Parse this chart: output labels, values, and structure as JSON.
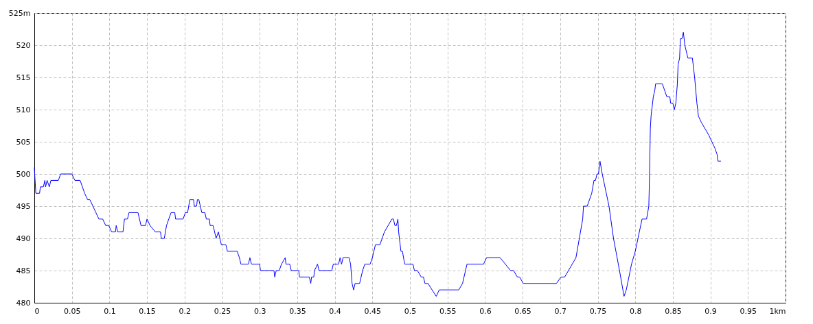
{
  "chart_data": {
    "type": "line",
    "x": [
      0,
      0.002,
      0.007,
      0.008,
      0.012,
      0.014,
      0.015,
      0.017,
      0.02,
      0.022,
      0.032,
      0.035,
      0.05,
      0.054,
      0.061,
      0.067,
      0.071,
      0.074,
      0.078,
      0.082,
      0.086,
      0.091,
      0.095,
      0.099,
      0.103,
      0.108,
      0.109,
      0.111,
      0.118,
      0.12,
      0.124,
      0.126,
      0.138,
      0.142,
      0.148,
      0.15,
      0.154,
      0.161,
      0.168,
      0.169,
      0.173,
      0.176,
      0.182,
      0.187,
      0.188,
      0.198,
      0.201,
      0.204,
      0.207,
      0.212,
      0.213,
      0.216,
      0.217,
      0.219,
      0.223,
      0.227,
      0.229,
      0.233,
      0.234,
      0.238,
      0.242,
      0.245,
      0.249,
      0.255,
      0.257,
      0.27,
      0.273,
      0.275,
      0.285,
      0.287,
      0.289,
      0.3,
      0.301,
      0.319,
      0.32,
      0.322,
      0.326,
      0.329,
      0.334,
      0.335,
      0.34,
      0.342,
      0.352,
      0.353,
      0.366,
      0.368,
      0.369,
      0.372,
      0.373,
      0.377,
      0.379,
      0.396,
      0.398,
      0.405,
      0.407,
      0.409,
      0.411,
      0.413,
      0.419,
      0.421,
      0.423,
      0.425,
      0.427,
      0.433,
      0.437,
      0.44,
      0.447,
      0.45,
      0.454,
      0.46,
      0.463,
      0.466,
      0.471,
      0.476,
      0.478,
      0.48,
      0.482,
      0.484,
      0.485,
      0.488,
      0.49,
      0.493,
      0.504,
      0.506,
      0.51,
      0.515,
      0.518,
      0.52,
      0.524,
      0.535,
      0.539,
      0.565,
      0.57,
      0.576,
      0.598,
      0.602,
      0.62,
      0.634,
      0.638,
      0.643,
      0.646,
      0.651,
      0.695,
      0.701,
      0.706,
      0.721,
      0.724,
      0.73,
      0.731,
      0.736,
      0.739,
      0.742,
      0.745,
      0.747,
      0.749,
      0.751,
      0.753,
      0.756,
      0.765,
      0.771,
      0.779,
      0.785,
      0.788,
      0.795,
      0.8,
      0.809,
      0.815,
      0.818,
      0.819,
      0.82,
      0.821,
      0.822,
      0.824,
      0.826,
      0.827,
      0.836,
      0.839,
      0.842,
      0.846,
      0.847,
      0.85,
      0.852,
      0.854,
      0.856,
      0.857,
      0.859,
      0.86,
      0.862,
      0.864,
      0.866,
      0.87,
      0.872,
      0.876,
      0.879,
      0.882,
      0.884,
      0.888,
      0.893,
      0.898,
      0.902,
      0.906,
      0.909,
      0.91,
      0.914
    ],
    "series": [
      {
        "color": "#0000ff",
        "values": [
          501,
          497,
          497,
          498,
          498,
          499,
          498,
          499,
          498,
          499,
          499,
          500,
          500,
          499,
          499,
          497,
          496,
          496,
          495,
          494,
          493,
          493,
          492,
          492,
          491,
          491,
          492,
          491,
          491,
          493,
          493,
          494,
          494,
          492,
          492,
          493,
          492,
          491,
          491,
          490,
          490,
          492,
          494,
          494,
          493,
          493,
          494,
          494,
          496,
          496,
          495,
          495,
          496,
          496,
          494,
          494,
          493,
          493,
          492,
          492,
          490,
          491,
          489,
          489,
          488,
          488,
          487,
          486,
          486,
          487,
          486,
          486,
          485,
          485,
          484,
          485,
          485,
          486,
          487,
          486,
          486,
          485,
          485,
          484,
          484,
          483,
          484,
          484,
          485,
          486,
          485,
          485,
          486,
          486,
          487,
          486,
          487,
          487,
          487,
          486,
          483,
          482,
          483,
          483,
          485,
          486,
          486,
          487,
          489,
          489,
          490,
          491,
          492,
          493,
          493,
          492,
          492,
          493,
          491,
          488,
          488,
          486,
          486,
          485,
          485,
          484,
          484,
          483,
          483,
          481,
          482,
          482,
          483,
          486,
          486,
          487,
          487,
          485,
          485,
          484,
          484,
          483,
          483,
          484,
          484,
          487,
          489,
          493,
          495,
          495,
          496,
          497,
          499,
          499,
          500,
          500,
          502,
          500,
          495,
          490,
          485,
          481,
          482,
          486,
          488,
          493,
          493,
          495,
          500,
          507,
          509,
          510,
          512,
          513,
          514,
          514,
          513,
          512,
          512,
          511,
          511,
          510,
          511,
          514,
          517,
          518,
          521,
          521,
          522,
          520,
          518,
          518,
          518,
          515,
          511,
          509,
          508,
          507,
          506,
          505,
          504,
          503,
          502,
          502
        ]
      }
    ],
    "xlim": [
      0,
      1
    ],
    "xticks": [
      0,
      0.05,
      0.1,
      0.15,
      0.2,
      0.25,
      0.3,
      0.35,
      0.4,
      0.45,
      0.5,
      0.55,
      0.6,
      0.65,
      0.7,
      0.75,
      0.8,
      0.85,
      0.9,
      0.95,
      {
        "value": 1,
        "label": "1km"
      }
    ],
    "ylim": [
      480,
      525
    ],
    "yticks": [
      480,
      485,
      490,
      495,
      500,
      505,
      510,
      515,
      520,
      {
        "value": 525,
        "label": "525m"
      }
    ],
    "grid": true,
    "marker": "none",
    "line_style": "solid"
  }
}
